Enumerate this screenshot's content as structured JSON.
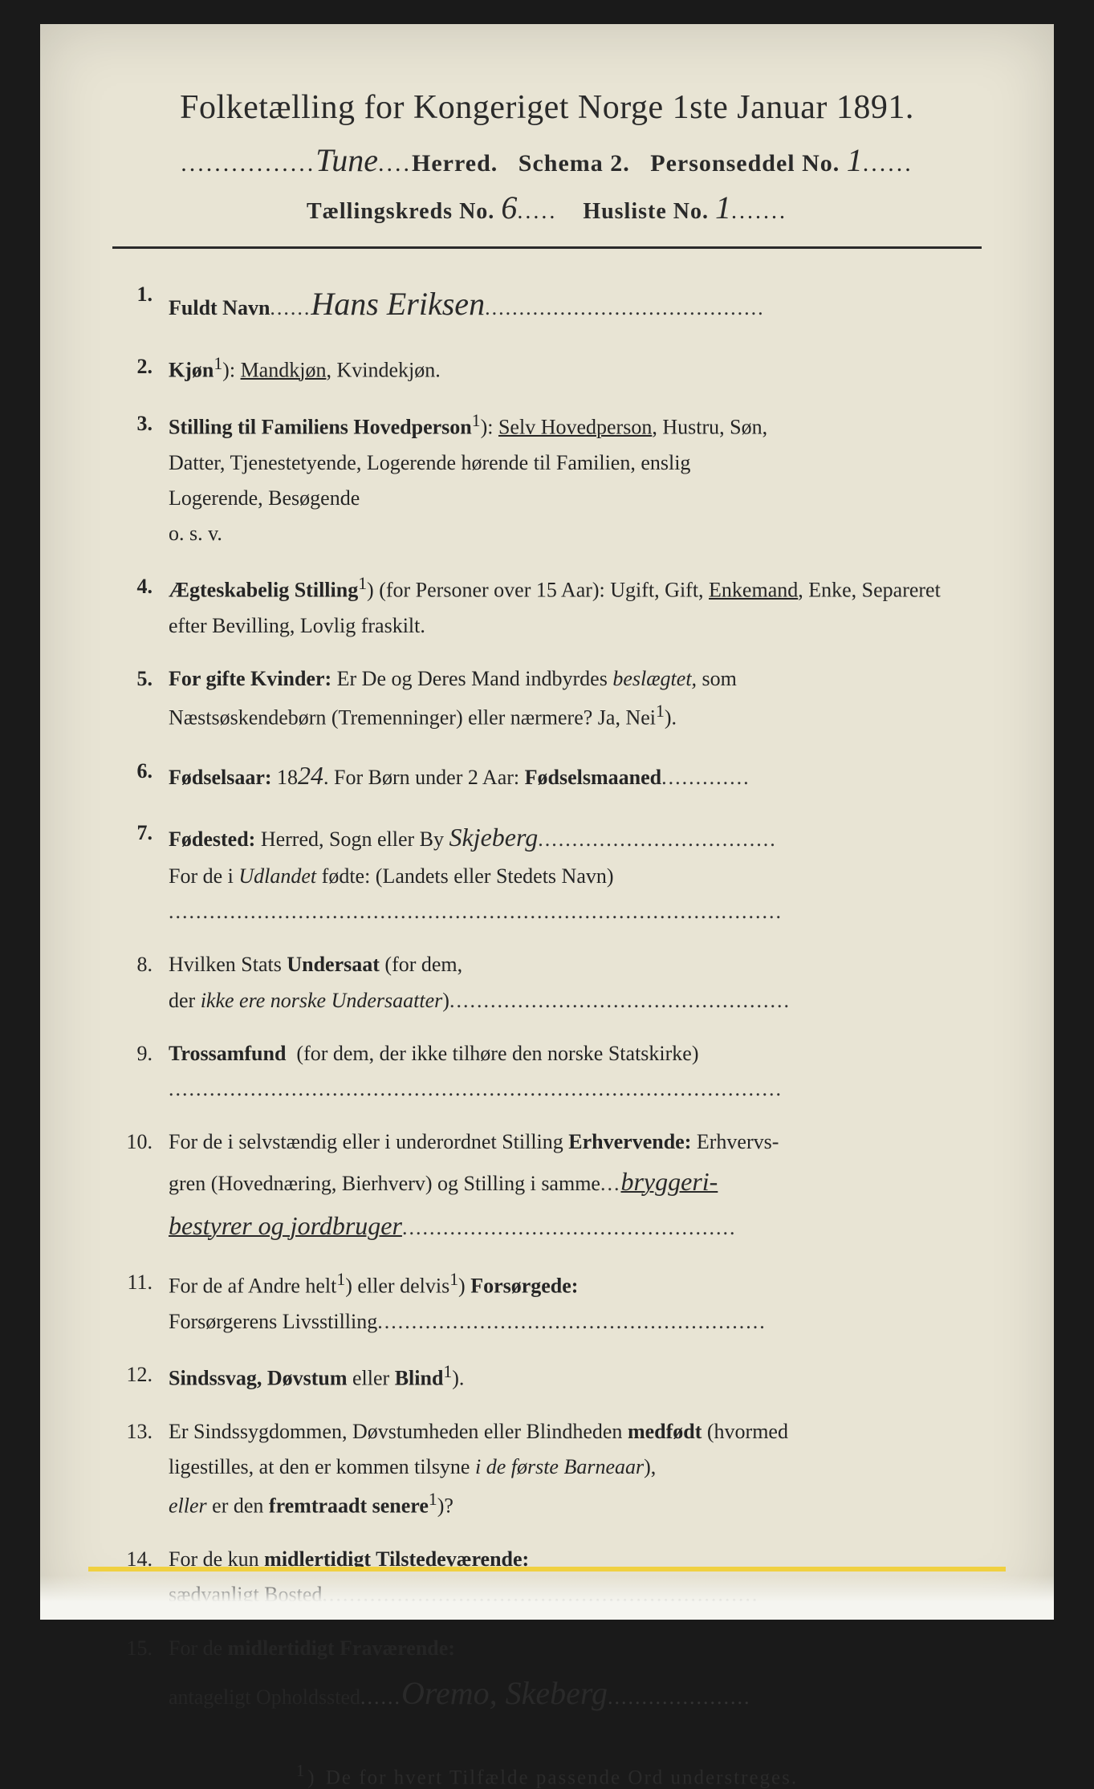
{
  "header": {
    "title": "Folketælling for Kongeriget Norge 1ste Januar 1891.",
    "herred_hw": "Tune",
    "herred_label": "Herred.",
    "schema": "Schema 2.",
    "personseddel_label": "Personseddel No.",
    "personseddel_hw": "1",
    "kreds_label": "Tællingskreds No.",
    "kreds_hw": "6",
    "husliste_label": "Husliste No.",
    "husliste_hw": "1"
  },
  "items": {
    "i1": {
      "num": "1.",
      "label": "Fuldt Navn",
      "hw": "Hans Eriksen"
    },
    "i2": {
      "num": "2.",
      "label": "Kjøn",
      "sup": "1",
      "opt1": "Mandkjøn",
      "opt2": "Kvindekjøn."
    },
    "i3": {
      "num": "3.",
      "label": "Stilling til Familiens Hovedperson",
      "sup": "1",
      "sel": "Selv Hovedperson",
      "rest1": ", Hustru, Søn,",
      "rest2": "Datter, Tjenestetyende, Logerende hørende til Familien, enslig",
      "rest3": "Logerende, Besøgende",
      "rest4": "o. s. v."
    },
    "i4": {
      "num": "4.",
      "label": "Ægteskabelig Stilling",
      "sup": "1",
      "paren": "(for Personer over 15 Aar):",
      "opts1": "Ugift, Gift,",
      "sel": "Enkemand",
      "opts2": ", Enke, Separeret efter Bevilling, Lovlig fraskilt."
    },
    "i5": {
      "num": "5.",
      "label": "For gifte Kvinder:",
      "text1": "Er De og Deres Mand indbyrdes",
      "ital": "beslægtet,",
      "text2": "som",
      "text3": "Næstsøskendebørn (Tremenninger) eller nærmere?  Ja, Nei",
      "sup": "1"
    },
    "i6": {
      "num": "6.",
      "label": "Fødselsaar:",
      "pre": "18",
      "hw": "24",
      "rest": ".   For Børn under 2 Aar:",
      "bold2": "Fødselsmaaned"
    },
    "i7": {
      "num": "7.",
      "label": "Fødested:",
      "text1": "Herred, Sogn eller By",
      "hw": "Skjeberg",
      "text2": "For de i",
      "ital": "Udlandet",
      "text3": "fødte: (Landets eller Stedets Navn)"
    },
    "i8": {
      "num": "8.",
      "text1": "Hvilken Stats",
      "bold": "Undersaat",
      "text2": "(for dem,",
      "text3": "der",
      "ital": "ikke ere norske Undersaatter"
    },
    "i9": {
      "num": "9.",
      "bold": "Trossamfund",
      "text": "(for dem, der ikke tilhøre den norske Statskirke)"
    },
    "i10": {
      "num": "10.",
      "text1": "For de i selvstændig eller i underordnet Stilling",
      "bold": "Erhvervende:",
      "text2": "Erhvervs-",
      "text3": "gren (Hovednæring, Bierhverv) og Stilling i samme",
      "hw1": "bryggeri-",
      "hw2": "bestyrer og jordbruger"
    },
    "i11": {
      "num": "11.",
      "text1": "For de af Andre helt",
      "sup1": "1",
      "text2": "eller delvis",
      "sup2": "1",
      "bold": "Forsørgede:",
      "text3": "Forsørgerens Livsstilling"
    },
    "i12": {
      "num": "12.",
      "bold": "Sindssvag, Døvstum",
      "text": "eller",
      "bold2": "Blind",
      "sup": "1"
    },
    "i13": {
      "num": "13.",
      "text1": "Er Sindssygdommen, Døvstumheden eller Blindheden",
      "bold1": "medfødt",
      "text2": "(hvormed",
      "text3": "ligestilles, at den er kommen tilsyne",
      "ital": "i de første Barneaar",
      "text4": "),",
      "ital2": "eller",
      "text5": "er den",
      "bold2": "fremtraadt senere",
      "sup": "1",
      "text6": "?"
    },
    "i14": {
      "num": "14.",
      "text1": "For de kun",
      "bold": "midlertidigt Tilstedeværende:",
      "text2": "sædvanligt Bosted"
    },
    "i15": {
      "num": "15.",
      "text1": "For de",
      "bold": "midlertidigt Fraværende:",
      "text2": "antageligt Opholdssted",
      "hw": "Oremo, Skeberg"
    }
  },
  "footnote": {
    "sup": "1",
    "text": "De for hvert Tilfælde passende Ord understreges."
  },
  "colors": {
    "page_bg": "#e8e4d4",
    "outer_bg": "#1a1a1a",
    "text": "#2a2a2a",
    "yellow": "#f0d040"
  }
}
